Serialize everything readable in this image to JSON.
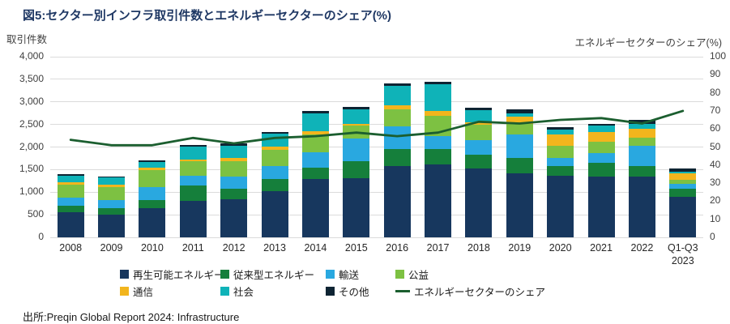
{
  "title": "図5:セクター別インフラ取引件数とエネルギーセクターのシェア(%)",
  "left_axis_label": "取引件数",
  "right_axis_label": "エネルギーセクターのシェア(%)",
  "source": "出所:Preqin Global Report 2024: Infrastructure",
  "colors": {
    "title": "#1F3864",
    "gridline": "#DBDBDB",
    "axis_text": "#3F3F3F"
  },
  "chart_data": {
    "type": "bar",
    "subtype": "stacked-bars-with-line",
    "categories": [
      "2008",
      "2009",
      "2010",
      "2011",
      "2012",
      "2013",
      "2014",
      "2015",
      "2016",
      "2017",
      "2018",
      "2019",
      "2020",
      "2021",
      "2022",
      "Q1-Q3 2023"
    ],
    "series": [
      {
        "name": "再生可能エネルギー",
        "color": "#17375E",
        "values": [
          550,
          500,
          650,
          810,
          840,
          1020,
          1300,
          1310,
          1580,
          1620,
          1520,
          1410,
          1360,
          1350,
          1340,
          900
        ]
      },
      {
        "name": "従来型エネルギー",
        "color": "#157F3B",
        "values": [
          150,
          150,
          180,
          340,
          240,
          270,
          250,
          380,
          370,
          330,
          310,
          350,
          220,
          300,
          240,
          180
        ]
      },
      {
        "name": "輸送",
        "color": "#29A8E0",
        "values": [
          180,
          180,
          280,
          220,
          260,
          290,
          330,
          490,
          500,
          290,
          320,
          510,
          180,
          220,
          450,
          100
        ]
      },
      {
        "name": "公益",
        "color": "#7DC142",
        "values": [
          290,
          280,
          380,
          320,
          350,
          350,
          390,
          300,
          380,
          450,
          350,
          240,
          270,
          240,
          180,
          100
        ]
      },
      {
        "name": "通信",
        "color": "#F2B51D",
        "values": [
          50,
          50,
          50,
          40,
          70,
          80,
          80,
          40,
          100,
          110,
          40,
          160,
          240,
          230,
          190,
          140
        ]
      },
      {
        "name": "社会",
        "color": "#0FB3B8",
        "values": [
          140,
          160,
          130,
          280,
          270,
          280,
          390,
          320,
          420,
          590,
          280,
          70,
          120,
          130,
          120,
          40
        ]
      },
      {
        "name": "その他",
        "color": "#0E2433",
        "values": [
          40,
          30,
          30,
          40,
          50,
          50,
          50,
          40,
          60,
          50,
          50,
          90,
          50,
          50,
          80,
          60
        ]
      }
    ],
    "line_series": {
      "name": "エネルギーセクターのシェア",
      "color": "#1B5E2F",
      "values": [
        54,
        51,
        51,
        55,
        52,
        55,
        56,
        58,
        56,
        58,
        64,
        63,
        65,
        66,
        63,
        70
      ]
    },
    "left_axis": {
      "ticks": [
        "0",
        "500",
        "1,000",
        "1,500",
        "2,000",
        "2,500",
        "3,000",
        "3,500",
        "4,000"
      ],
      "ylim": [
        0,
        4000
      ]
    },
    "right_axis": {
      "ticks": [
        "0",
        "10",
        "20",
        "30",
        "40",
        "50",
        "60",
        "70",
        "80",
        "90",
        "100"
      ],
      "ylim": [
        0,
        100
      ]
    },
    "grid": "horizontal",
    "legend_position": "bottom"
  }
}
